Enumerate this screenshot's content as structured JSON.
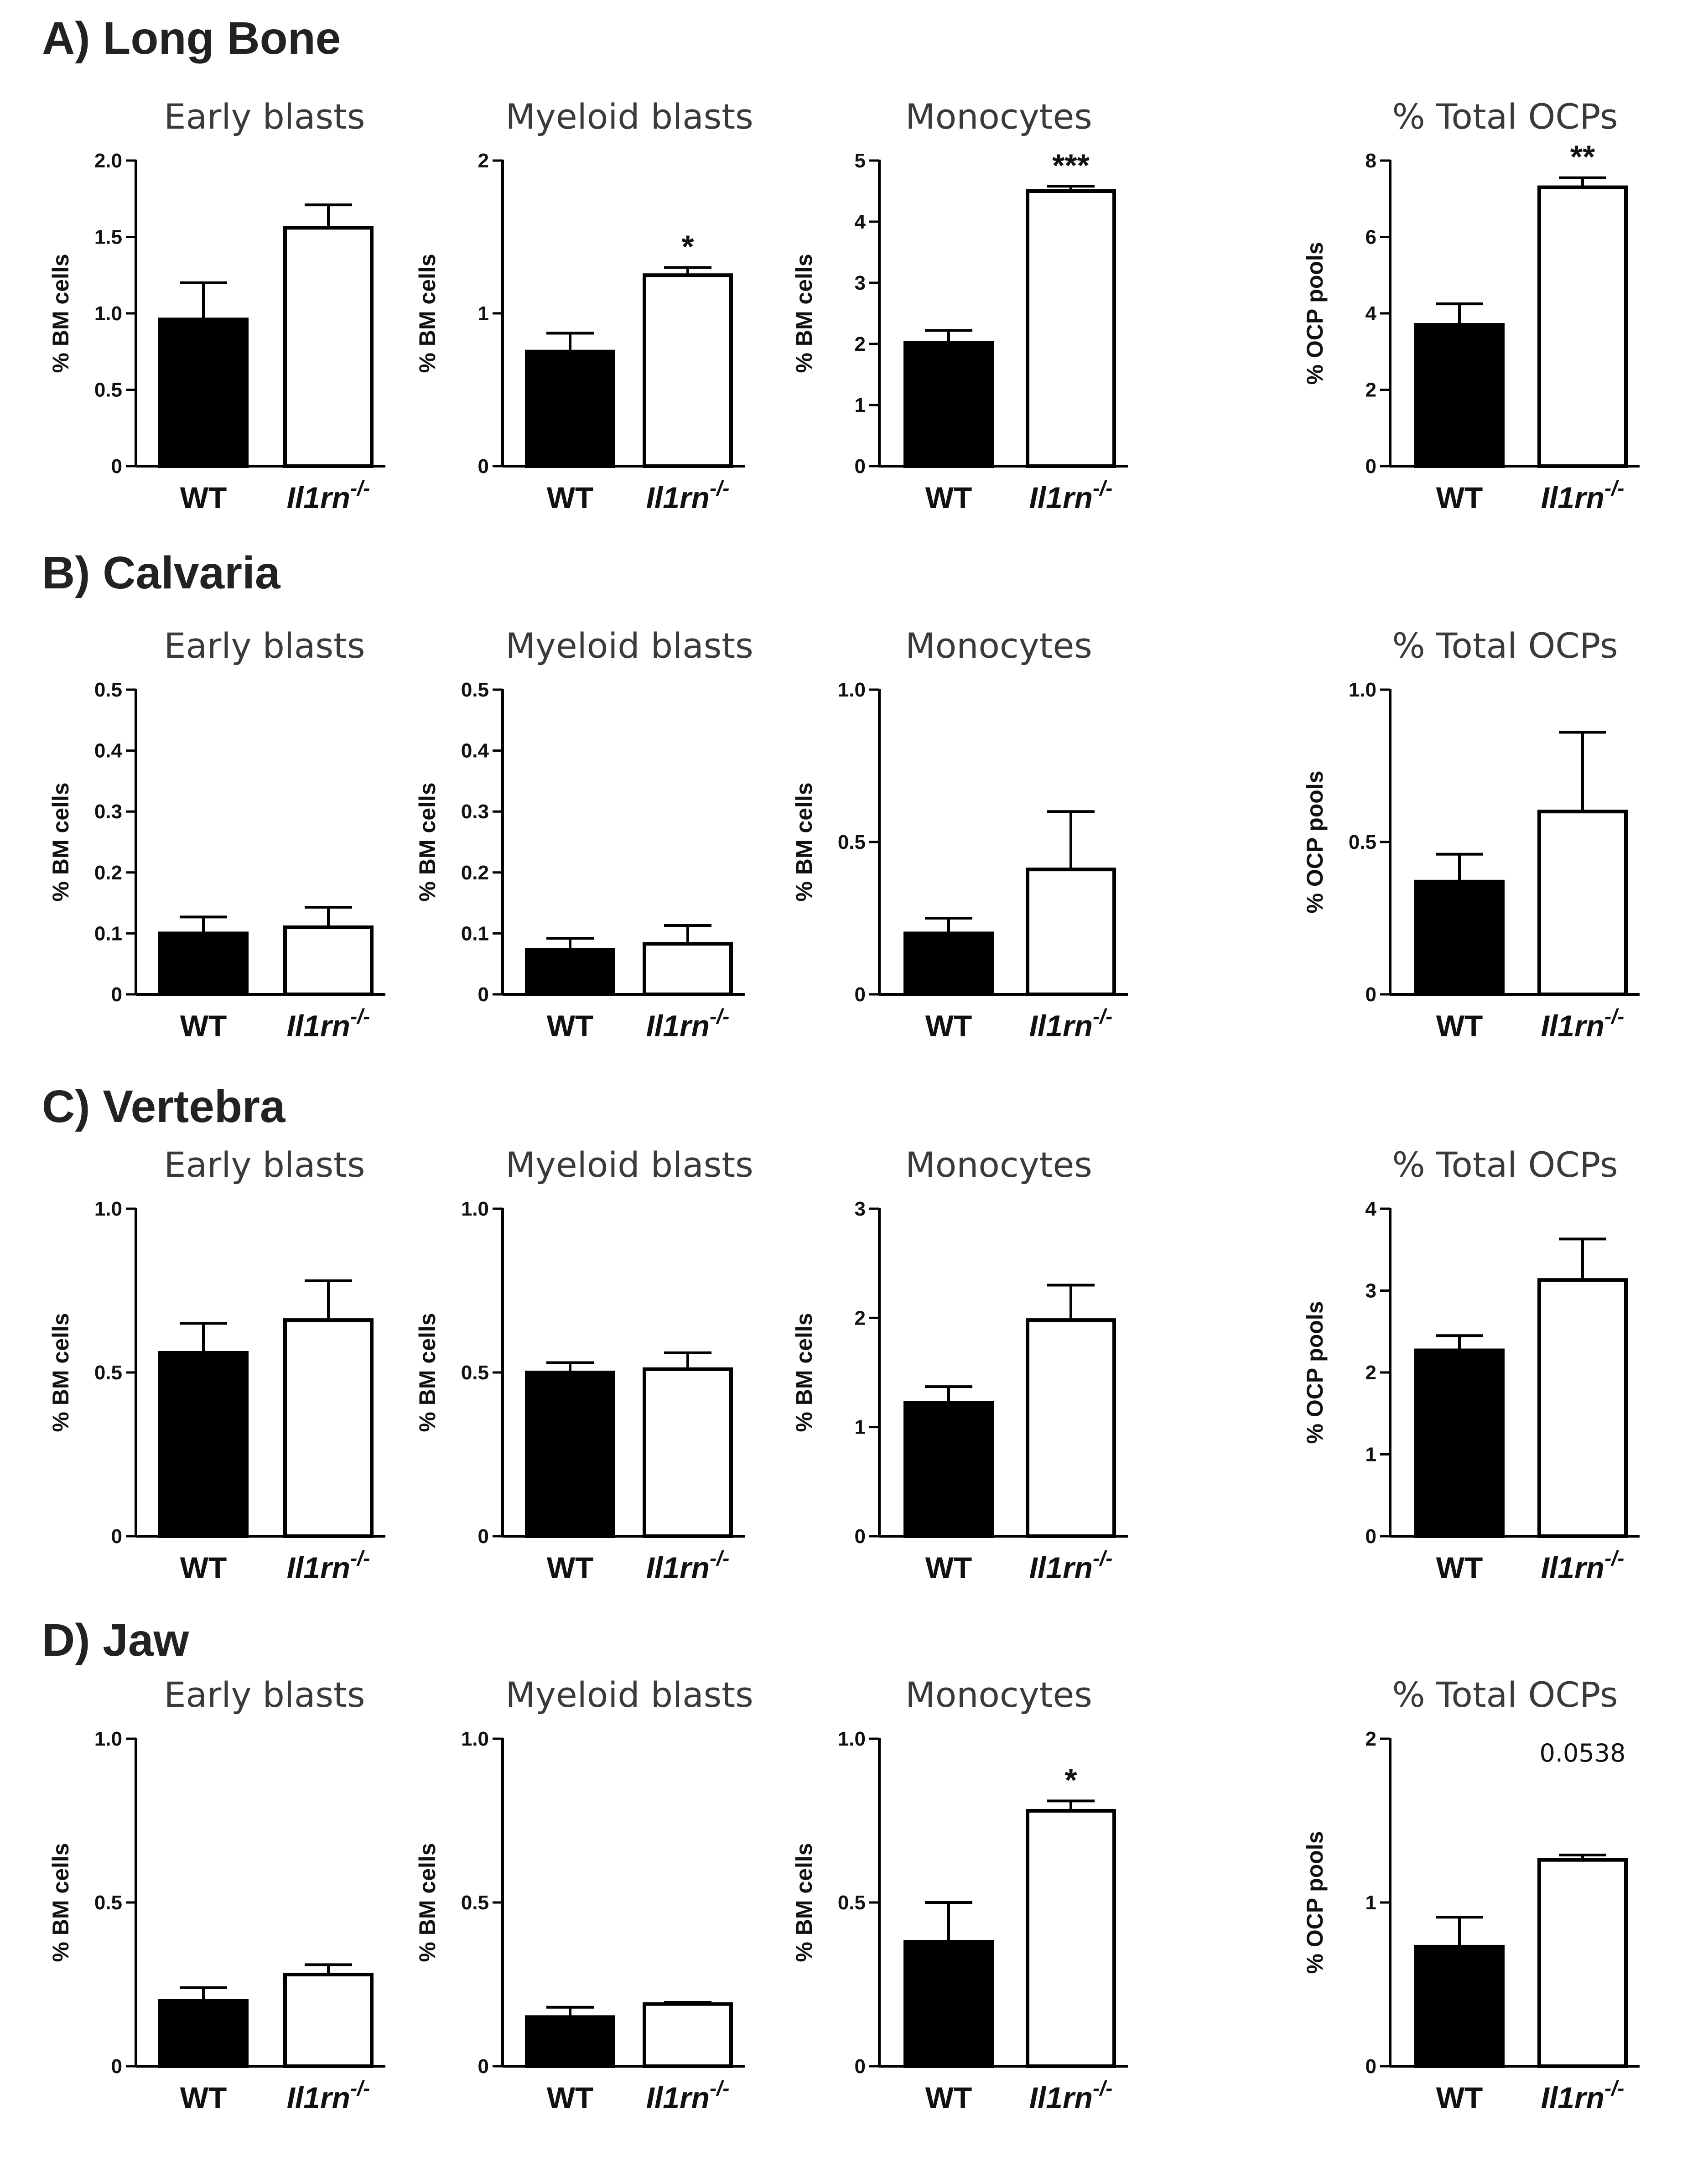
{
  "figure": {
    "rows": [
      {
        "title": "A) Long Bone"
      },
      {
        "title": "B) Calvaria"
      },
      {
        "title": "C) Vertebra"
      },
      {
        "title": "D) Jaw"
      }
    ]
  },
  "chart_data": [
    {
      "type": "bar",
      "panel": "A) Long Bone",
      "title": "Early blasts",
      "ylabel": "% BM cells",
      "categories": [
        "WT",
        "Il1rn-/-"
      ],
      "values": [
        0.96,
        1.56
      ],
      "errors": [
        0.24,
        0.15
      ],
      "ylim": [
        0,
        2.0
      ],
      "ticks": [
        "0",
        "0.5",
        "1.0",
        "1.5",
        "2.0"
      ],
      "annotation": ""
    },
    {
      "type": "bar",
      "panel": "A) Long Bone",
      "title": "Myeloid blasts",
      "ylabel": "% BM cells",
      "categories": [
        "WT",
        "Il1rn-/-"
      ],
      "values": [
        0.75,
        1.25
      ],
      "errors": [
        0.12,
        0.05
      ],
      "ylim": [
        0,
        2
      ],
      "ticks": [
        "0",
        "1",
        "2"
      ],
      "annotation": "*"
    },
    {
      "type": "bar",
      "panel": "A) Long Bone",
      "title": "Monocytes",
      "ylabel": "% BM cells",
      "categories": [
        "WT",
        "Il1rn-/-"
      ],
      "values": [
        2.02,
        4.5
      ],
      "errors": [
        0.2,
        0.08
      ],
      "ylim": [
        0,
        5
      ],
      "ticks": [
        "0",
        "1",
        "2",
        "3",
        "4",
        "5"
      ],
      "annotation": "***"
    },
    {
      "type": "bar",
      "panel": "A) Long Bone",
      "title": "% Total OCPs",
      "ylabel": "% OCP pools",
      "categories": [
        "WT",
        "Il1rn-/-"
      ],
      "values": [
        3.7,
        7.3
      ],
      "errors": [
        0.55,
        0.25
      ],
      "ylim": [
        0,
        8
      ],
      "ticks": [
        "0",
        "2",
        "4",
        "6",
        "8"
      ],
      "annotation": "**"
    },
    {
      "type": "bar",
      "panel": "B) Calvaria",
      "title": "Early blasts",
      "ylabel": "% BM cells",
      "categories": [
        "WT",
        "Il1rn-/-"
      ],
      "values": [
        0.1,
        0.11
      ],
      "errors": [
        0.027,
        0.033
      ],
      "ylim": [
        0,
        0.5
      ],
      "ticks": [
        "0",
        "0.1",
        "0.2",
        "0.3",
        "0.4",
        "0.5"
      ],
      "annotation": ""
    },
    {
      "type": "bar",
      "panel": "B) Calvaria",
      "title": "Myeloid blasts",
      "ylabel": "% BM cells",
      "categories": [
        "WT",
        "Il1rn-/-"
      ],
      "values": [
        0.073,
        0.083
      ],
      "errors": [
        0.019,
        0.03
      ],
      "ylim": [
        0,
        0.5
      ],
      "ticks": [
        "0",
        "0.1",
        "0.2",
        "0.3",
        "0.4",
        "0.5"
      ],
      "annotation": ""
    },
    {
      "type": "bar",
      "panel": "B) Calvaria",
      "title": "Monocytes",
      "ylabel": "% BM cells",
      "categories": [
        "WT",
        "Il1rn-/-"
      ],
      "values": [
        0.2,
        0.41
      ],
      "errors": [
        0.05,
        0.19
      ],
      "ylim": [
        0,
        1.0
      ],
      "ticks": [
        "0",
        "0.5",
        "1.0"
      ],
      "annotation": ""
    },
    {
      "type": "bar",
      "panel": "B) Calvaria",
      "title": "% Total OCPs",
      "ylabel": "% OCP pools",
      "categories": [
        "WT",
        "Il1rn-/-"
      ],
      "values": [
        0.37,
        0.6
      ],
      "errors": [
        0.09,
        0.26
      ],
      "ylim": [
        0,
        1.0
      ],
      "ticks": [
        "0",
        "0.5",
        "1.0"
      ],
      "annotation": ""
    },
    {
      "type": "bar",
      "panel": "C) Vertebra",
      "title": "Early blasts",
      "ylabel": "% BM cells",
      "categories": [
        "WT",
        "Il1rn-/-"
      ],
      "values": [
        0.56,
        0.66
      ],
      "errors": [
        0.09,
        0.12
      ],
      "ylim": [
        0,
        1.0
      ],
      "ticks": [
        "0",
        "0.5",
        "1.0"
      ],
      "annotation": ""
    },
    {
      "type": "bar",
      "panel": "C) Vertebra",
      "title": "Myeloid blasts",
      "ylabel": "% BM cells",
      "categories": [
        "WT",
        "Il1rn-/-"
      ],
      "values": [
        0.5,
        0.51
      ],
      "errors": [
        0.03,
        0.05
      ],
      "ylim": [
        0,
        1.0
      ],
      "ticks": [
        "0",
        "0.5",
        "1.0"
      ],
      "annotation": ""
    },
    {
      "type": "bar",
      "panel": "C) Vertebra",
      "title": "Monocytes",
      "ylabel": "% BM cells",
      "categories": [
        "WT",
        "Il1rn-/-"
      ],
      "values": [
        1.22,
        1.98
      ],
      "errors": [
        0.15,
        0.32
      ],
      "ylim": [
        0,
        3
      ],
      "ticks": [
        "0",
        "1",
        "2",
        "3"
      ],
      "annotation": ""
    },
    {
      "type": "bar",
      "panel": "C) Vertebra",
      "title": "% Total OCPs",
      "ylabel": "% OCP pools",
      "categories": [
        "WT",
        "Il1rn-/-"
      ],
      "values": [
        2.27,
        3.13
      ],
      "errors": [
        0.18,
        0.5
      ],
      "ylim": [
        0,
        4
      ],
      "ticks": [
        "0",
        "1",
        "2",
        "3",
        "4"
      ],
      "annotation": ""
    },
    {
      "type": "bar",
      "panel": "D) Jaw",
      "title": "Early blasts",
      "ylabel": "% BM cells",
      "categories": [
        "WT",
        "Il1rn-/-"
      ],
      "values": [
        0.2,
        0.28
      ],
      "errors": [
        0.04,
        0.03
      ],
      "ylim": [
        0,
        1.0
      ],
      "ticks": [
        "0",
        "0.5",
        "1.0"
      ],
      "annotation": ""
    },
    {
      "type": "bar",
      "panel": "D) Jaw",
      "title": "Myeloid blasts",
      "ylabel": "% BM cells",
      "categories": [
        "WT",
        "Il1rn-/-"
      ],
      "values": [
        0.15,
        0.19
      ],
      "errors": [
        0.03,
        0.005
      ],
      "ylim": [
        0,
        1.0
      ],
      "ticks": [
        "0",
        "0.5",
        "1.0"
      ],
      "annotation": ""
    },
    {
      "type": "bar",
      "panel": "D) Jaw",
      "title": "Monocytes",
      "ylabel": "% BM cells",
      "categories": [
        "WT",
        "Il1rn-/-"
      ],
      "values": [
        0.38,
        0.78
      ],
      "errors": [
        0.12,
        0.03
      ],
      "ylim": [
        0,
        1.0
      ],
      "ticks": [
        "0",
        "0.5",
        "1.0"
      ],
      "annotation": "*"
    },
    {
      "type": "bar",
      "panel": "D) Jaw",
      "title": "% Total OCPs",
      "ylabel": "% OCP pools",
      "categories": [
        "WT",
        "Il1rn-/-"
      ],
      "values": [
        0.73,
        1.26
      ],
      "errors": [
        0.18,
        0.03
      ],
      "ylim": [
        0,
        2
      ],
      "ticks": [
        "0",
        "1",
        "2"
      ],
      "annotation": "0.0538"
    }
  ],
  "colors": {
    "wt_fill": "#000000",
    "ko_fill": "#ffffff",
    "stroke": "#000000"
  }
}
